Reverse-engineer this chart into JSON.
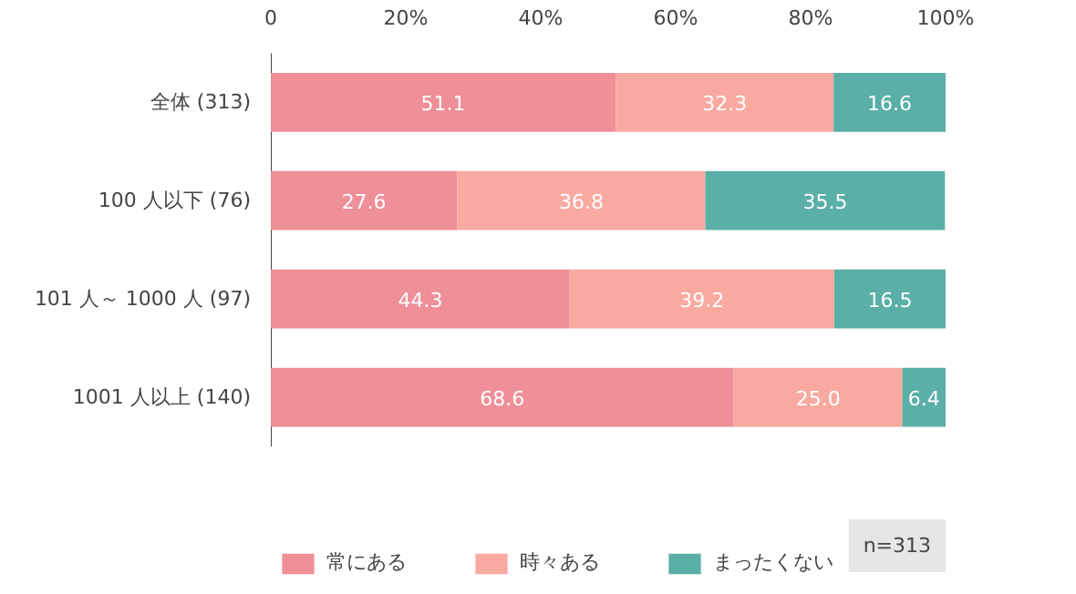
{
  "chart_data": {
    "type": "bar",
    "orientation": "horizontal",
    "stacked": true,
    "categories": [
      "全体 (313)",
      "100 人以下 (76)",
      "101 人～ 1000 人 (97)",
      "1001 人以上 (140)"
    ],
    "series": [
      {
        "name": "常にある",
        "color": "#ef8f98",
        "values": [
          51.1,
          27.6,
          44.3,
          68.6
        ],
        "value_labels": [
          "51.1",
          "27.6",
          "44.3",
          "68.6"
        ]
      },
      {
        "name": "時々ある",
        "color": "#f8aaa0",
        "values": [
          32.3,
          36.8,
          39.2,
          25.0
        ],
        "value_labels": [
          "32.3",
          "36.8",
          "39.2",
          "25.0"
        ]
      },
      {
        "name": "まったくない",
        "color": "#5aafa7",
        "values": [
          16.6,
          35.5,
          16.5,
          6.4
        ],
        "value_labels": [
          "16.6",
          "35.5",
          "16.5",
          "6.4"
        ]
      }
    ],
    "xlim": [
      0,
      100
    ],
    "xticks": [
      0,
      {
        "value": 20,
        "label": "20%"
      },
      {
        "value": 40,
        "label": "40%"
      },
      {
        "value": 60,
        "label": "60%"
      },
      {
        "value": 80,
        "label": "80%"
      },
      {
        "value": 100,
        "label": "100%"
      }
    ],
    "grid": false,
    "legend": "bottom",
    "annotations": [
      "n=313"
    ]
  }
}
